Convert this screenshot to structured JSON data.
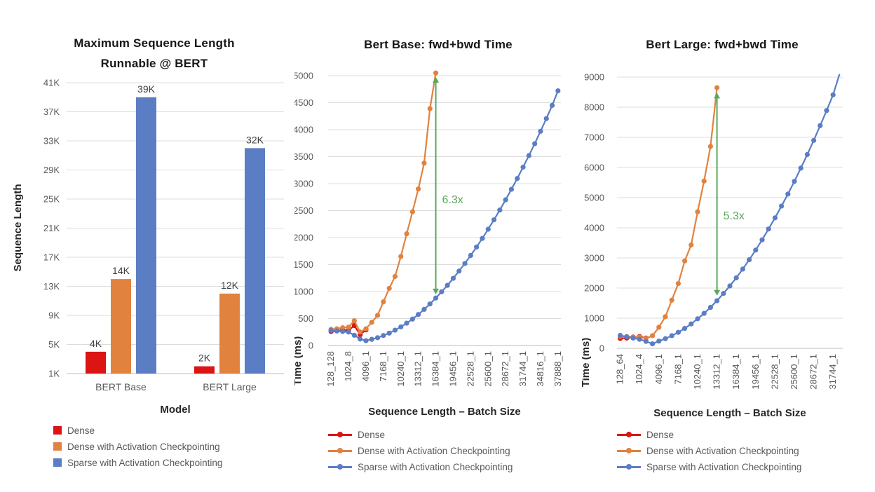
{
  "colors": {
    "dense": "#dc1414",
    "dense_checkpoint": "#e1823f",
    "sparse_checkpoint": "#5b7dc4",
    "annotation_green": "#5aa85a",
    "gridline": "#dcdcdc",
    "axis_line": "#c9c9c9",
    "tick_label": "#595959",
    "axis_title": "#262626",
    "chart_title": "#171717",
    "legend_label": "#595959",
    "bar_value_label": "#404040",
    "background": "#ffffff"
  },
  "chart_data": [
    {
      "type": "bar",
      "title_line1": "Maximum Sequence Length",
      "title_line2": "Runnable @ BERT",
      "xlabel": "Model",
      "ylabel": "Sequence Length",
      "y_min": 1000,
      "y_max": 41000,
      "y_step": 4000,
      "y_tick_labels": [
        "1K",
        "5K",
        "9K",
        "13K",
        "17K",
        "21K",
        "25K",
        "29K",
        "33K",
        "37K",
        "41K"
      ],
      "categories": [
        "BERT Base",
        "BERT Large"
      ],
      "series": [
        {
          "name": "Dense",
          "color": "dense",
          "values": [
            4000,
            2000
          ],
          "value_labels": [
            "4K",
            "2K"
          ]
        },
        {
          "name": "Dense with Activation Checkpointing",
          "color": "dense_checkpoint",
          "values": [
            14000,
            12000
          ],
          "value_labels": [
            "14K",
            "12K"
          ]
        },
        {
          "name": "Sparse with Activation Checkpointing",
          "color": "sparse_checkpoint",
          "values": [
            39000,
            32000
          ],
          "value_labels": [
            "39K",
            "32K"
          ]
        }
      ]
    },
    {
      "type": "line",
      "title": "Bert Base: fwd+bwd Time",
      "xlabel": "Sequence Length – Batch Size",
      "ylabel": "Time (ms)",
      "y_min": 0,
      "y_max": 5000,
      "y_step": 500,
      "x_values": [
        128,
        256,
        512,
        1024,
        2048,
        3072,
        4096,
        5120,
        6144,
        7168,
        8192,
        9216,
        10240,
        11264,
        12288,
        13312,
        14336,
        15360,
        16384,
        17408,
        18432,
        19456,
        20480,
        21504,
        22528,
        23552,
        24576,
        25600,
        26624,
        27648,
        28672,
        29696,
        30720,
        31744,
        32768,
        33792,
        34816,
        35840,
        36864,
        37888
      ],
      "x_tick_labels": [
        {
          "index": 0,
          "label": "128_128"
        },
        {
          "index": 3,
          "label": "1024_8"
        },
        {
          "index": 6,
          "label": "4096_1"
        },
        {
          "index": 9,
          "label": "7168_1"
        },
        {
          "index": 12,
          "label": "10240_1"
        },
        {
          "index": 15,
          "label": "13312_1"
        },
        {
          "index": 18,
          "label": "16384_1"
        },
        {
          "index": 21,
          "label": "19456_1"
        },
        {
          "index": 24,
          "label": "22528_1"
        },
        {
          "index": 27,
          "label": "25600_1"
        },
        {
          "index": 30,
          "label": "28672_1"
        },
        {
          "index": 33,
          "label": "31744_1"
        },
        {
          "index": 36,
          "label": "34816_1"
        },
        {
          "index": 39,
          "label": "37888_1"
        }
      ],
      "series": [
        {
          "name": "Dense",
          "color": "dense",
          "values": [
            260,
            270,
            290,
            280,
            370,
            200,
            290
          ]
        },
        {
          "name": "Dense with Activation Checkpointing",
          "color": "dense_checkpoint",
          "values": [
            300,
            310,
            330,
            340,
            460,
            250,
            310,
            430,
            560,
            810,
            1060,
            1280,
            1650,
            2070,
            2480,
            2900,
            3380,
            4390,
            5050
          ]
        },
        {
          "name": "Sparse with Activation Checkpointing",
          "color": "sparse_checkpoint",
          "values": [
            280,
            270,
            260,
            250,
            190,
            120,
            90,
            115,
            145,
            185,
            230,
            285,
            345,
            415,
            490,
            575,
            670,
            770,
            880,
            995,
            1115,
            1245,
            1380,
            1520,
            1670,
            1825,
            1985,
            2155,
            2330,
            2510,
            2700,
            2895,
            3095,
            3305,
            3520,
            3740,
            3970,
            4205,
            4450,
            4720
          ]
        }
      ],
      "annotation": {
        "label": "6.3x",
        "x_index": 18,
        "arrow_from": 950,
        "arrow_to": 4975,
        "label_y_value": 2700
      }
    },
    {
      "type": "line",
      "title": "Bert Large: fwd+bwd Time",
      "xlabel": "Sequence Length – Batch Size",
      "ylabel": "Time (ms)",
      "y_min": 0,
      "y_max": 9000,
      "y_step": 1000,
      "x_values": [
        128,
        256,
        512,
        1024,
        2048,
        3072,
        4096,
        5120,
        6144,
        7168,
        8192,
        9216,
        10240,
        11264,
        12288,
        13312,
        14336,
        15360,
        16384,
        17408,
        18432,
        19456,
        20480,
        21504,
        22528,
        23552,
        24576,
        25600,
        26624,
        27648,
        28672,
        29696,
        30720,
        31744,
        32768
      ],
      "x_tick_labels": [
        {
          "index": 0,
          "label": "128_64"
        },
        {
          "index": 3,
          "label": "1024_4"
        },
        {
          "index": 6,
          "label": "4096_1"
        },
        {
          "index": 9,
          "label": "7168_1"
        },
        {
          "index": 12,
          "label": "10240_1"
        },
        {
          "index": 15,
          "label": "13312_1"
        },
        {
          "index": 18,
          "label": "16384_1"
        },
        {
          "index": 21,
          "label": "19456_1"
        },
        {
          "index": 24,
          "label": "22528_1"
        },
        {
          "index": 27,
          "label": "25600_1"
        },
        {
          "index": 30,
          "label": "28672_1"
        },
        {
          "index": 33,
          "label": "31744_1"
        }
      ],
      "series": [
        {
          "name": "Dense",
          "color": "dense",
          "values": [
            330,
            340,
            360,
            390,
            340
          ]
        },
        {
          "name": "Dense with Activation Checkpointing",
          "color": "dense_checkpoint",
          "values": [
            400,
            390,
            380,
            370,
            330,
            420,
            700,
            1050,
            1600,
            2150,
            2900,
            3430,
            4530,
            5550,
            6700,
            8650
          ]
        },
        {
          "name": "Sparse with Activation Checkpointing",
          "color": "sparse_checkpoint",
          "last_marker": false,
          "values": [
            430,
            380,
            340,
            300,
            230,
            150,
            240,
            320,
            420,
            530,
            660,
            810,
            980,
            1160,
            1360,
            1580,
            1820,
            2070,
            2340,
            2630,
            2940,
            3260,
            3600,
            3960,
            4330,
            4720,
            5120,
            5540,
            5980,
            6430,
            6900,
            7390,
            7890,
            8410,
            9100
          ]
        }
      ],
      "annotation": {
        "label": "5.3x",
        "x_index": 15,
        "arrow_from": 1750,
        "arrow_to": 8480,
        "label_y_value": 4400
      }
    }
  ]
}
